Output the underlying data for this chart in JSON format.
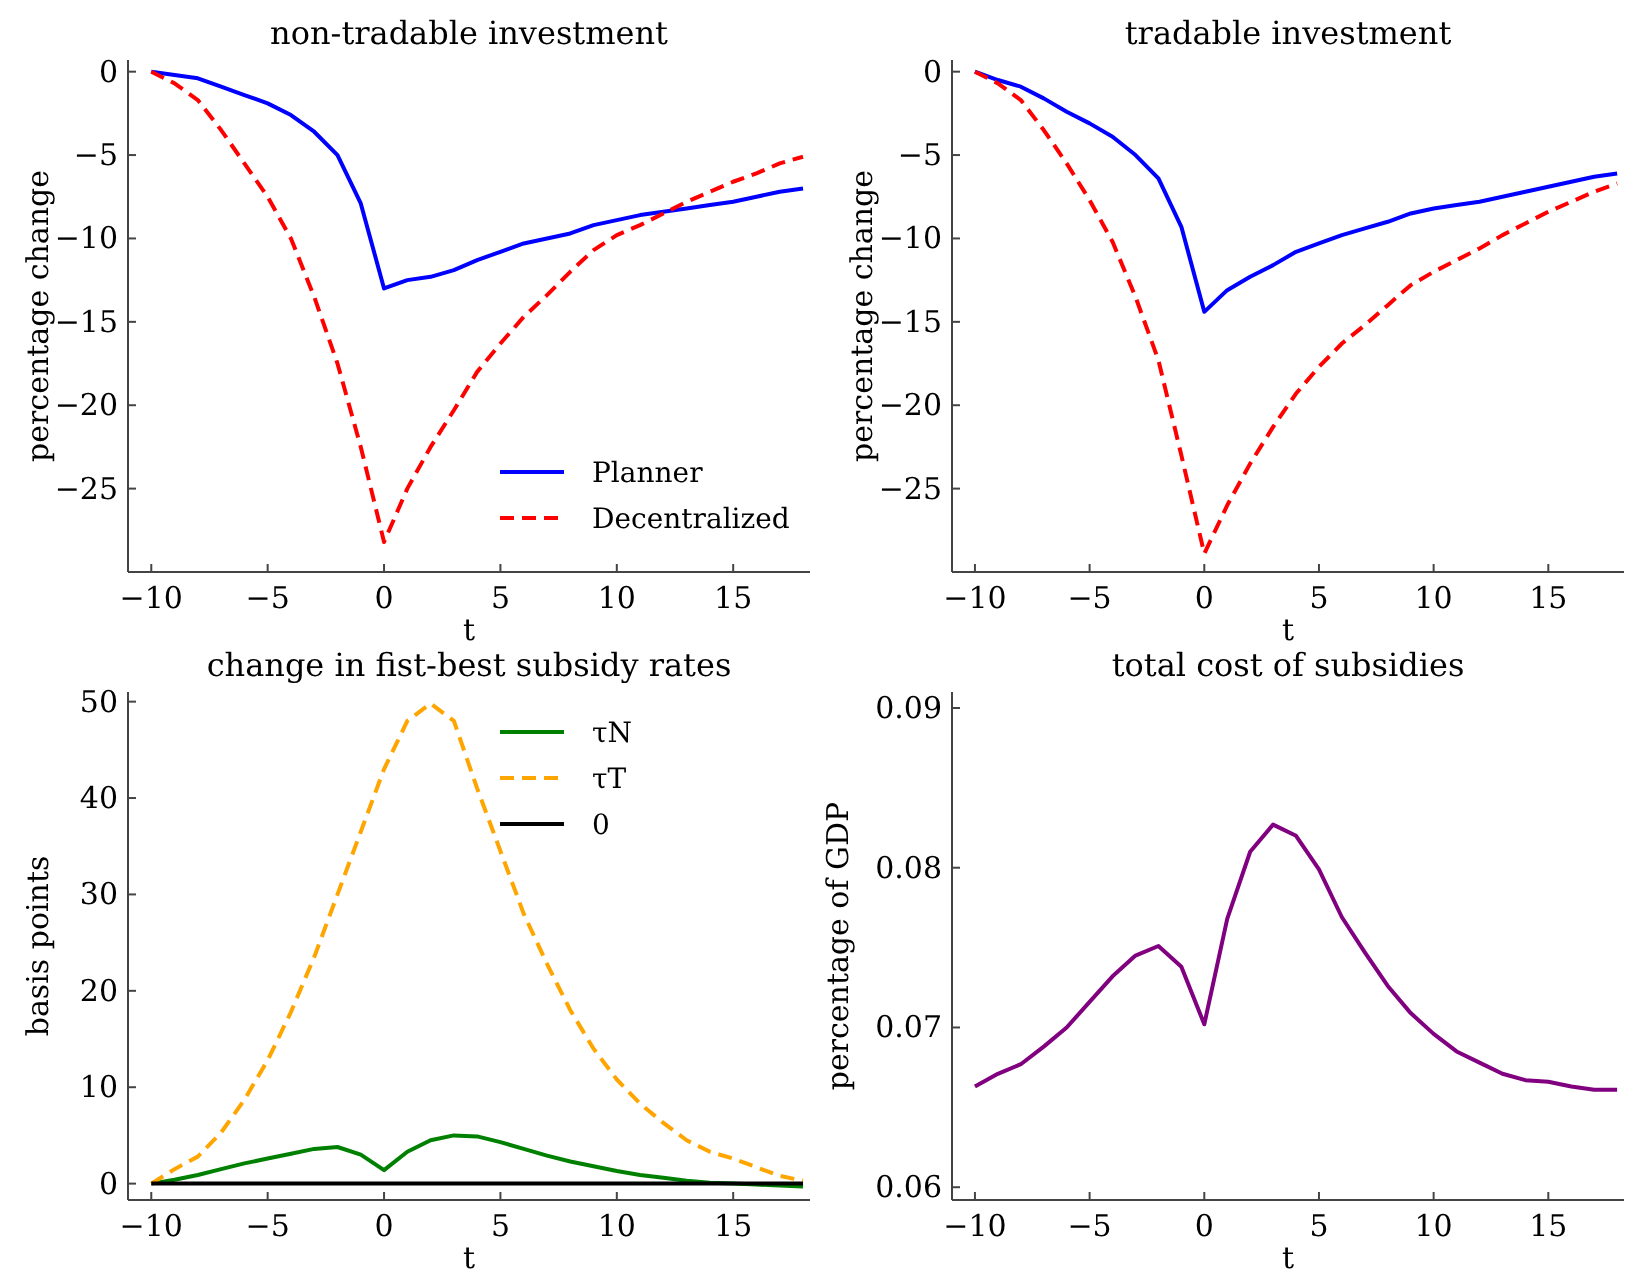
{
  "chart_data": [
    {
      "type": "line",
      "title": "non-tradable investment",
      "xlabel": "t",
      "ylabel": "percentage change",
      "x": [
        -10,
        -9,
        -8,
        -7,
        -6,
        -5,
        -4,
        -3,
        -2,
        -1,
        0,
        1,
        2,
        3,
        4,
        5,
        6,
        7,
        8,
        9,
        10,
        11,
        12,
        13,
        14,
        15,
        16,
        17,
        18
      ],
      "xlim": [
        -11,
        18.3
      ],
      "xticks": [
        -10,
        -5,
        0,
        5,
        10,
        15
      ],
      "ylim": [
        -30,
        0.7
      ],
      "yticks": [
        0,
        -5,
        -10,
        -15,
        -20,
        -25
      ],
      "grid": false,
      "legend": "bottom right",
      "series": [
        {
          "name": "Planner",
          "color": "#0000ff",
          "line_style": "solid",
          "values": [
            0,
            -0.2,
            -0.4,
            -0.9,
            -1.4,
            -1.9,
            -2.6,
            -3.6,
            -5,
            -7.9,
            -13,
            -12.5,
            -12.3,
            -11.9,
            -11.3,
            -10.8,
            -10.3,
            -10,
            -9.7,
            -9.2,
            -8.9,
            -8.6,
            -8.4,
            -8.2,
            -8,
            -7.8,
            -7.5,
            -7.2,
            -7
          ]
        },
        {
          "name": "Decentralized",
          "color": "#ff0000",
          "line_style": "dashed",
          "values": [
            0,
            -0.7,
            -1.7,
            -3.5,
            -5.5,
            -7.5,
            -10,
            -13.5,
            -17.5,
            -22.5,
            -28.2,
            -25,
            -22.5,
            -20.3,
            -18,
            -16.3,
            -14.7,
            -13.4,
            -12,
            -10.7,
            -9.8,
            -9.2,
            -8.5,
            -7.8,
            -7.2,
            -6.6,
            -6.1,
            -5.5,
            -5.1
          ]
        }
      ]
    },
    {
      "type": "line",
      "title": "tradable investment",
      "xlabel": "t",
      "ylabel": "percentage change",
      "x": [
        -10,
        -9,
        -8,
        -7,
        -6,
        -5,
        -4,
        -3,
        -2,
        -1,
        0,
        1,
        2,
        3,
        4,
        5,
        6,
        7,
        8,
        9,
        10,
        11,
        12,
        13,
        14,
        15,
        16,
        17,
        18
      ],
      "xlim": [
        -11,
        18.3
      ],
      "xticks": [
        -10,
        -5,
        0,
        5,
        10,
        15
      ],
      "ylim": [
        -30,
        0.7
      ],
      "yticks": [
        0,
        -5,
        -10,
        -15,
        -20,
        -25
      ],
      "grid": false,
      "legend": false,
      "series": [
        {
          "color": "#0000ff",
          "line_style": "solid",
          "values": [
            0,
            -0.5,
            -0.9,
            -1.6,
            -2.4,
            -3.1,
            -3.9,
            -5,
            -6.4,
            -9.3,
            -14.4,
            -13.1,
            -12.3,
            -11.6,
            -10.8,
            -10.3,
            -9.8,
            -9.4,
            -9,
            -8.5,
            -8.2,
            -8,
            -7.8,
            -7.5,
            -7.2,
            -6.9,
            -6.6,
            -6.3,
            -6.1
          ]
        },
        {
          "color": "#ff0000",
          "line_style": "dashed",
          "values": [
            0,
            -0.7,
            -1.7,
            -3.5,
            -5.5,
            -7.7,
            -10.2,
            -13.5,
            -17.3,
            -23,
            -28.9,
            -26,
            -23.5,
            -21.3,
            -19.3,
            -17.7,
            -16.3,
            -15.2,
            -14,
            -12.8,
            -12,
            -11.3,
            -10.6,
            -9.8,
            -9.1,
            -8.4,
            -7.8,
            -7.2,
            -6.7
          ]
        }
      ]
    },
    {
      "type": "line",
      "title": "change in fist-best subsidy rates",
      "xlabel": "t",
      "ylabel": "basis points",
      "x": [
        -10,
        -9,
        -8,
        -7,
        -6,
        -5,
        -4,
        -3,
        -2,
        -1,
        0,
        1,
        2,
        3,
        4,
        5,
        6,
        7,
        8,
        9,
        10,
        11,
        12,
        13,
        14,
        15,
        16,
        17,
        18
      ],
      "xlim": [
        -11,
        18.3
      ],
      "xticks": [
        -10,
        -5,
        0,
        5,
        10,
        15
      ],
      "ylim": [
        -1.7,
        51
      ],
      "yticks": [
        0,
        10,
        20,
        30,
        40,
        50
      ],
      "grid": false,
      "legend": "top right",
      "series": [
        {
          "name": "τN",
          "color": "#008000",
          "line_style": "solid",
          "values": [
            0,
            0.4,
            0.9,
            1.5,
            2.1,
            2.6,
            3.1,
            3.6,
            3.8,
            3,
            1.4,
            3.3,
            4.5,
            5,
            4.9,
            4.3,
            3.6,
            2.9,
            2.3,
            1.8,
            1.3,
            0.9,
            0.6,
            0.3,
            0.1,
            0,
            -0.1,
            -0.2,
            -0.3
          ]
        },
        {
          "name": "τT",
          "color": "#ffa500",
          "line_style": "dashed",
          "values": [
            0,
            1.5,
            2.8,
            5.3,
            8.7,
            12.8,
            17.8,
            23.5,
            30,
            36.5,
            43,
            48,
            49.8,
            48,
            41,
            34.5,
            28,
            22.8,
            18,
            14,
            10.8,
            8.3,
            6.3,
            4.5,
            3.3,
            2.6,
            1.7,
            0.8,
            0.3
          ]
        },
        {
          "name": "0",
          "color": "#000000",
          "line_style": "solid",
          "values": [
            0,
            0,
            0,
            0,
            0,
            0,
            0,
            0,
            0,
            0,
            0,
            0,
            0,
            0,
            0,
            0,
            0,
            0,
            0,
            0,
            0,
            0,
            0,
            0,
            0,
            0,
            0,
            0,
            0
          ]
        }
      ]
    },
    {
      "type": "line",
      "title": "total cost of subsidies",
      "xlabel": "t",
      "ylabel": "percentage of GDP",
      "x": [
        -10,
        -9,
        -8,
        -7,
        -6,
        -5,
        -4,
        -3,
        -2,
        -1,
        0,
        1,
        2,
        3,
        4,
        5,
        6,
        7,
        8,
        9,
        10,
        11,
        12,
        13,
        14,
        15,
        16,
        17,
        18
      ],
      "xlim": [
        -11,
        18.3
      ],
      "xticks": [
        -10,
        -5,
        0,
        5,
        10,
        15
      ],
      "ylim": [
        0.0592,
        0.091
      ],
      "yticks": [
        0.06,
        0.07,
        0.08,
        0.09
      ],
      "grid": false,
      "legend": false,
      "series": [
        {
          "color": "#800080",
          "line_style": "solid",
          "values": [
            0.0663,
            0.0671,
            0.0677,
            0.0688,
            0.07,
            0.0716,
            0.0732,
            0.0745,
            0.0751,
            0.0738,
            0.0702,
            0.0768,
            0.081,
            0.0827,
            0.082,
            0.0799,
            0.0769,
            0.0747,
            0.0726,
            0.0709,
            0.0696,
            0.0685,
            0.0678,
            0.0671,
            0.0667,
            0.0666,
            0.0663,
            0.0661,
            0.0661
          ]
        }
      ]
    }
  ]
}
